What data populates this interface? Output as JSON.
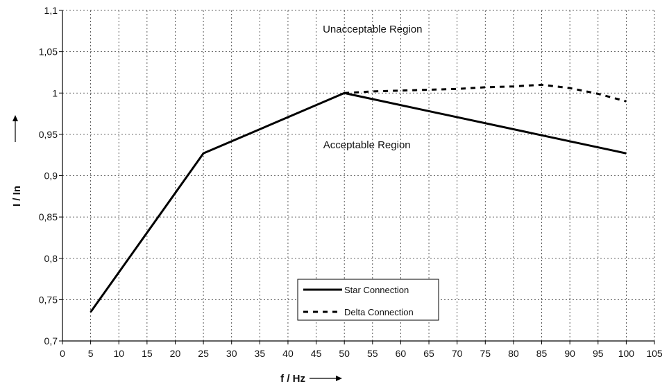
{
  "chart_data": {
    "type": "line",
    "xlabel": "f / Hz",
    "ylabel": "I / In",
    "xlim": [
      0,
      105
    ],
    "ylim": [
      0.7,
      1.1
    ],
    "x_ticks": [
      0,
      5,
      10,
      15,
      20,
      25,
      30,
      35,
      40,
      45,
      50,
      55,
      60,
      65,
      70,
      75,
      80,
      85,
      90,
      95,
      100,
      105
    ],
    "x_tick_labels": [
      "0",
      "5",
      "10",
      "15",
      "20",
      "25",
      "30",
      "35",
      "40",
      "45",
      "50",
      "55",
      "60",
      "65",
      "70",
      "75",
      "80",
      "85",
      "90",
      "95",
      "100",
      "105"
    ],
    "y_ticks": [
      0.7,
      0.75,
      0.8,
      0.85,
      0.9,
      0.95,
      1.0,
      1.05,
      1.1
    ],
    "y_tick_labels": [
      "0,7",
      "0,75",
      "0,8",
      "0,85",
      "0,9",
      "0,95",
      "1",
      "1,05",
      "1,1"
    ],
    "grid": true,
    "series": [
      {
        "name": "Star Connection",
        "style": "solid",
        "color": "#000000",
        "x": [
          5,
          25,
          50,
          100
        ],
        "y": [
          0.735,
          0.927,
          1.0,
          0.927
        ]
      },
      {
        "name": "Delta Connection",
        "style": "dashed",
        "color": "#000000",
        "x": [
          50,
          55,
          60,
          65,
          70,
          75,
          80,
          85,
          90,
          95,
          100
        ],
        "y": [
          1.0,
          1.002,
          1.003,
          1.004,
          1.005,
          1.007,
          1.008,
          1.01,
          1.006,
          0.999,
          0.99
        ]
      }
    ],
    "annotations": [
      {
        "text": "Unacceptable Region",
        "x": 55,
        "y": 1.073
      },
      {
        "text": "Acceptable Region",
        "x": 54,
        "y": 0.933
      }
    ],
    "legend": {
      "position": "bottom-center",
      "entries": [
        "Star Connection",
        "Delta Connection"
      ]
    }
  }
}
